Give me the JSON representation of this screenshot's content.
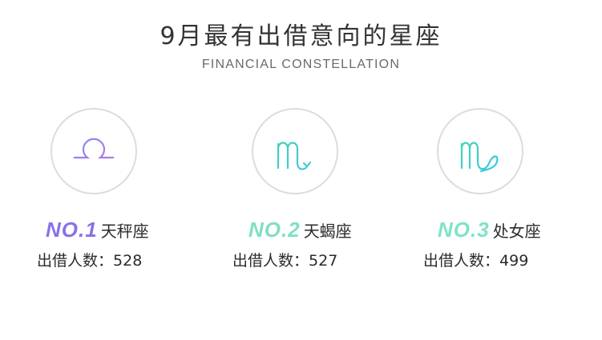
{
  "header": {
    "title": "9月最有出借意向的星座",
    "subtitle": "FINANCIAL CONSTELLATION"
  },
  "rankings": [
    {
      "rank": "NO.1",
      "name": "天秤座",
      "count_label": "出借人数：",
      "count": "528",
      "icon": "libra-icon",
      "color": "#8c6fe8",
      "icon_color": "#9a8cf0"
    },
    {
      "rank": "NO.2",
      "name": "天蝎座",
      "count_label": "出借人数：",
      "count": "527",
      "icon": "scorpio-icon",
      "color": "#7fe0c4",
      "icon_color": "#45d3c3"
    },
    {
      "rank": "NO.3",
      "name": "处女座",
      "count_label": "出借人数：",
      "count": "499",
      "icon": "virgo-icon",
      "color": "#7fe3c8",
      "icon_color": "#40d6c9"
    }
  ]
}
